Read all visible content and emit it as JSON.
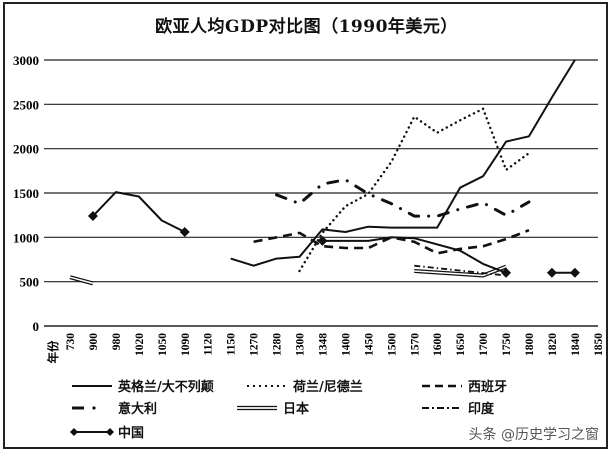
{
  "title": "欧亚人均GDP对比图（1990年美元）",
  "watermark": "头条 @历史学习之窗",
  "xaxis_label": "年份",
  "chart_data": {
    "type": "line",
    "title": "欧亚人均GDP对比图（1990年美元）",
    "xlabel": "年份",
    "ylabel": "",
    "ylim": [
      0,
      3000
    ],
    "yticks": [
      0,
      500,
      1000,
      1500,
      2000,
      2500,
      3000
    ],
    "grid": true,
    "legend_position": "bottom",
    "categories": [
      "730",
      "900",
      "980",
      "1020",
      "1050",
      "1090",
      "1120",
      "1150",
      "1270",
      "1280",
      "1300",
      "1348",
      "1400",
      "1450",
      "1500",
      "1570",
      "1600",
      "1650",
      "1700",
      "1750",
      "1800",
      "1820",
      "1840",
      "1850"
    ],
    "series": [
      {
        "name": "英格兰/大不列颠",
        "style": "solid",
        "values": {
          "1150": 760,
          "1270": 680,
          "1280": 760,
          "1300": 780,
          "1348": 1090,
          "1400": 1060,
          "1450": 1120,
          "1500": 1110,
          "1570": 1110,
          "1600": 1110,
          "1650": 1560,
          "1700": 1690,
          "1750": 2080,
          "1800": 2140,
          "1820": 2580,
          "1840": 3000
        }
      },
      {
        "name": "荷兰/尼德兰",
        "style": "dotted",
        "values": {
          "1300": 620,
          "1348": 1050,
          "1400": 1350,
          "1450": 1490,
          "1500": 1850,
          "1570": 2360,
          "1600": 2180,
          "1650": 2320,
          "1700": 2450,
          "1750": 1760,
          "1800": 1950
        }
      },
      {
        "name": "西班牙",
        "style": "dashed",
        "values": {
          "1270": 950,
          "1300": 1050,
          "1348": 900,
          "1400": 880,
          "1450": 880,
          "1500": 1000,
          "1570": 950,
          "1600": 820,
          "1650": 870,
          "1700": 900,
          "1750": 980,
          "1800": 1080
        }
      },
      {
        "name": "意大利",
        "style": "dash-dot",
        "values": {
          "1280": 1480,
          "1300": 1380,
          "1348": 1600,
          "1400": 1650,
          "1450": 1490,
          "1500": 1380,
          "1570": 1240,
          "1600": 1240,
          "1650": 1320,
          "1700": 1390,
          "1750": 1250,
          "1800": 1400
        }
      },
      {
        "name": "日本",
        "style": "double",
        "values": {
          "730": 550,
          "900": 480
        },
        "values_late": {
          "1570": 620,
          "1700": 570,
          "1750": 670
        }
      },
      {
        "name": "印度",
        "style": "dash-dot-dot",
        "values": {
          "1570": 680,
          "1750": 570
        }
      },
      {
        "name": "中国",
        "style": "solid-diamond",
        "values": {
          "900": 1240,
          "980": 1510,
          "1020": 1460,
          "1050": 1190,
          "1090": 1060
        },
        "values_late": {
          "1348": 960,
          "1400": 960,
          "1450": 960,
          "1500": 1000,
          "1570": 990,
          "1650": 850,
          "1700": 700,
          "1750": 600
        },
        "values_modern": {
          "1820": 600,
          "1840": 600
        }
      }
    ]
  },
  "legend": [
    {
      "label": "英格兰/大不列颠"
    },
    {
      "label": "荷兰/尼德兰"
    },
    {
      "label": "西班牙"
    },
    {
      "label": "意大利"
    },
    {
      "label": "日本"
    },
    {
      "label": "印度"
    },
    {
      "label": "中国"
    }
  ]
}
